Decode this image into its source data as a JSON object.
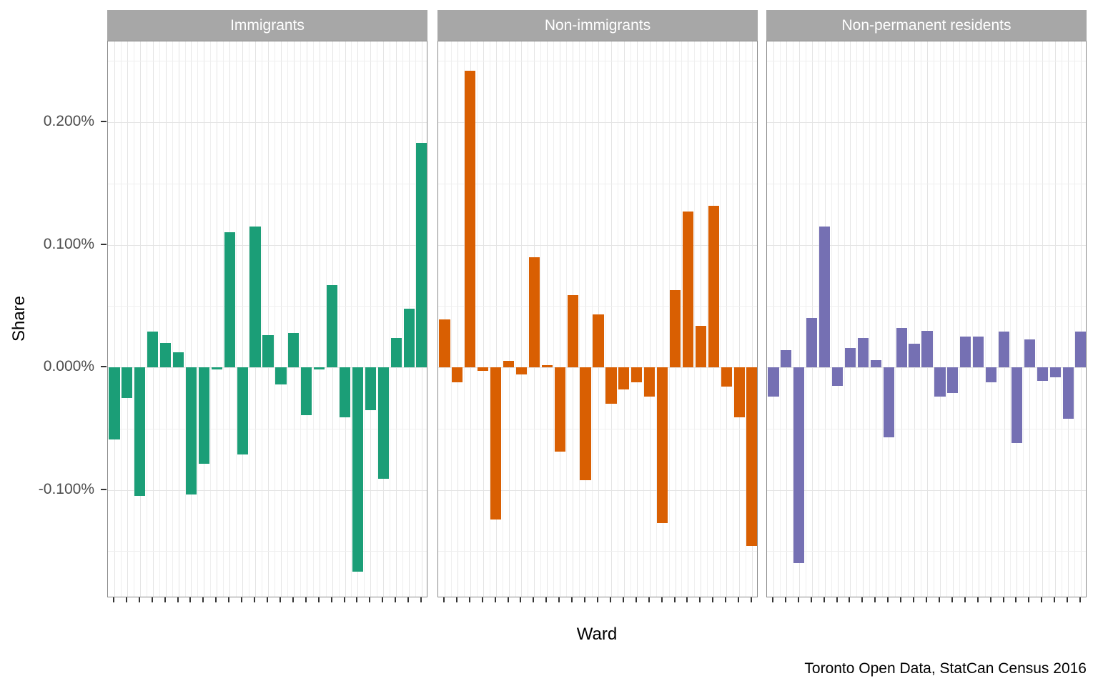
{
  "figure": {
    "y_axis_title": "Share",
    "x_axis_title": "Ward",
    "caption": "Toronto Open Data, StatCan Census 2016"
  },
  "chart_data": {
    "type": "bar",
    "faceted": true,
    "title": "",
    "xlabel": "Ward",
    "ylabel": "Share",
    "caption": "Toronto Open Data, StatCan Census 2016",
    "legend_position": "none",
    "grid": true,
    "unit": "% (share)",
    "n_bars_per_facet": 25,
    "x_tick_labels_visible": false,
    "y_tick_labels": [
      "0.200%",
      "0.100%",
      "0.000%",
      "-0.100%"
    ],
    "y_tick_values": [
      0.2,
      0.1,
      0.0,
      -0.1
    ],
    "y_minor_gridline_values": [
      0.25,
      0.15,
      0.05,
      -0.05,
      -0.15
    ],
    "ylim": [
      -0.188,
      0.266
    ],
    "series": [
      {
        "name": "Immigrants",
        "color": "#1b9e77",
        "values": [
          -0.059,
          -0.025,
          -0.105,
          0.029,
          0.02,
          0.012,
          -0.104,
          -0.079,
          -0.002,
          0.11,
          -0.071,
          0.115,
          0.026,
          -0.014,
          0.028,
          -0.039,
          -0.002,
          0.067,
          -0.041,
          -0.167,
          -0.035,
          -0.091,
          0.024,
          0.048,
          0.183
        ]
      },
      {
        "name": "Non-immigrants",
        "color": "#d95f02",
        "values": [
          0.039,
          -0.012,
          0.242,
          -0.003,
          -0.124,
          0.005,
          -0.006,
          0.09,
          0.002,
          -0.069,
          0.059,
          -0.092,
          0.043,
          -0.03,
          -0.018,
          -0.012,
          -0.024,
          -0.127,
          0.063,
          0.127,
          0.034,
          0.132,
          -0.016,
          -0.041,
          -0.146
        ]
      },
      {
        "name": "Non-permanent residents",
        "color": "#7570b3",
        "values": [
          -0.024,
          0.014,
          -0.16,
          0.04,
          0.115,
          -0.015,
          0.016,
          0.024,
          0.006,
          -0.057,
          0.032,
          0.019,
          0.03,
          -0.024,
          -0.021,
          0.025,
          0.025,
          -0.012,
          0.029,
          -0.062,
          0.023,
          -0.011,
          -0.008,
          -0.042,
          0.029
        ]
      }
    ],
    "colors": {
      "strip_background": "#a7a7a7",
      "strip_text": "#ffffff",
      "panel_border": "#8a8a8a",
      "grid_major": "#e4e4e4",
      "grid_minor": "#efefef",
      "axis_tick_text": "#4d4d4d",
      "axis_title_text": "#000000",
      "tick_mark": "#333333",
      "background": "#ffffff"
    }
  }
}
